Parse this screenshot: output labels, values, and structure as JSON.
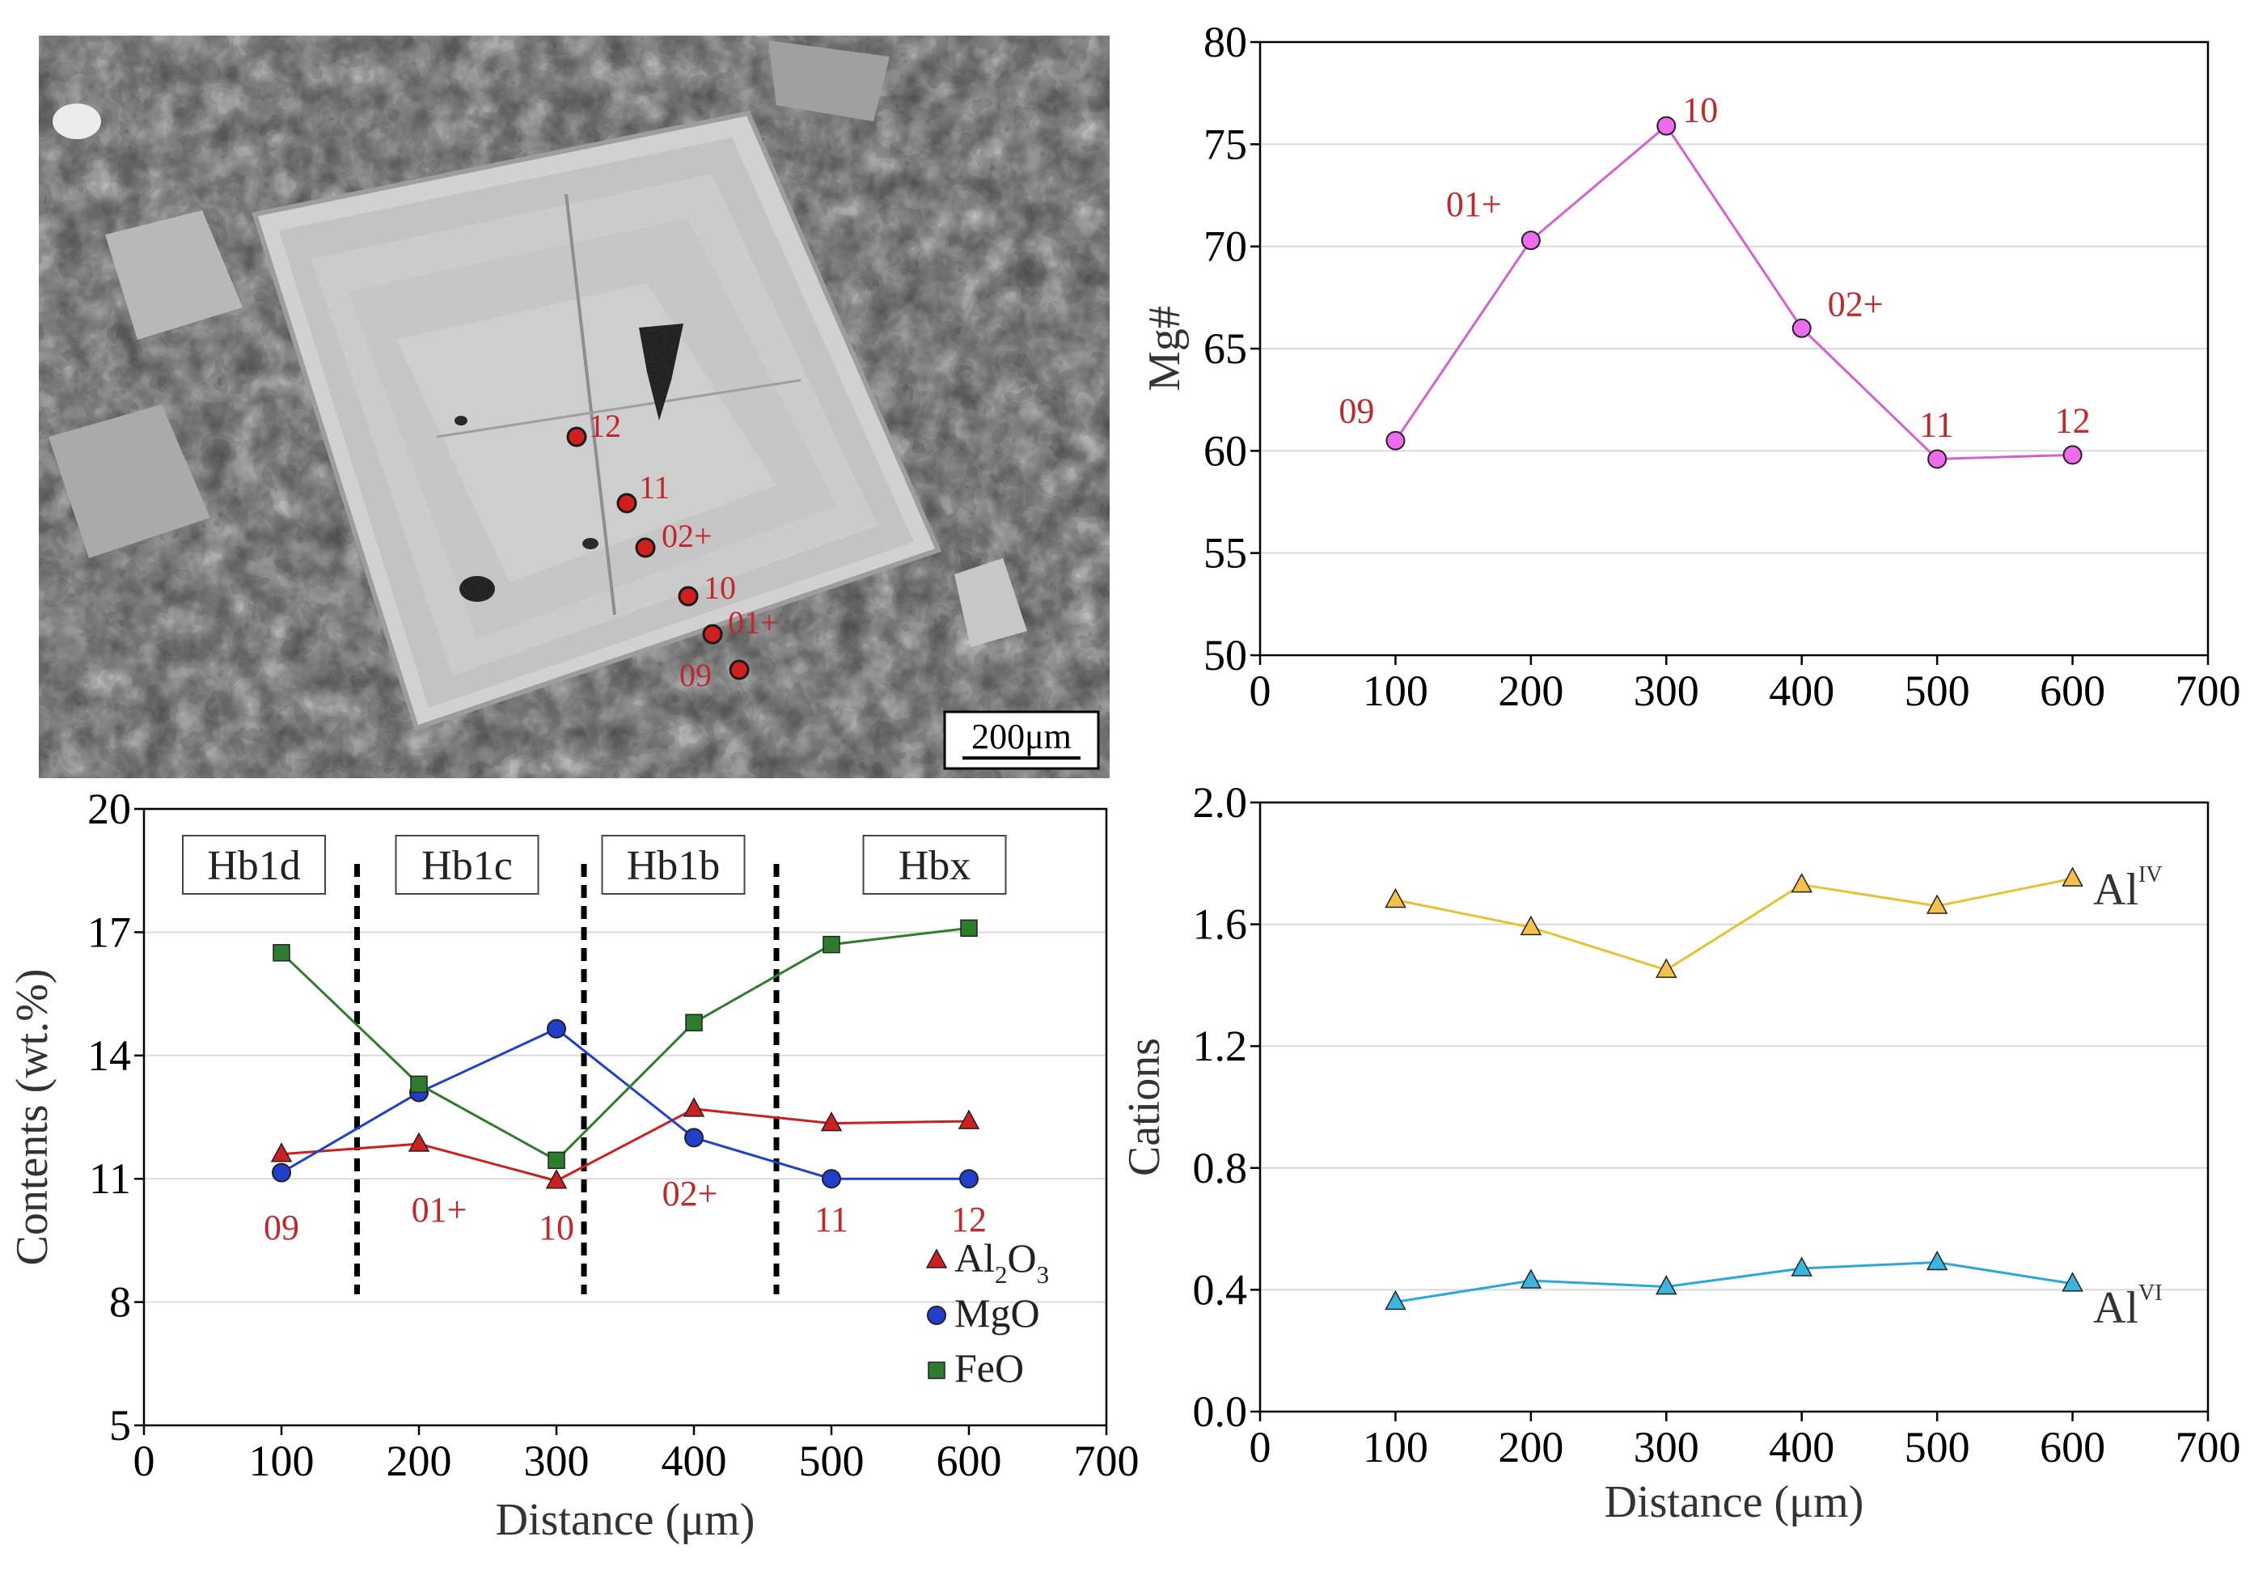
{
  "colors": {
    "mg_line": "#d65fd6",
    "mg_marker": "#ee6bee",
    "al2o3": "#cc1f1f",
    "mgo": "#1f3fcc",
    "feo": "#2e7d2e",
    "aliv_line": "#e6c233",
    "aliv_marker": "#f2c24a",
    "alvi_line": "#2aa8d8",
    "alvi_marker": "#3bb5e0",
    "label_red": "#c0282d",
    "grid": "#d9d9d9"
  },
  "micrograph": {
    "scale_bar": "200μm",
    "spot_labels": [
      "12",
      "11",
      "02+",
      "10",
      "01+",
      "09"
    ]
  },
  "chart_data": [
    {
      "id": "mg",
      "type": "line",
      "x": [
        100,
        200,
        300,
        400,
        500,
        600
      ],
      "series": [
        {
          "name": "Mg#",
          "values": [
            60.5,
            70.3,
            75.9,
            66.0,
            59.6,
            59.8
          ]
        }
      ],
      "point_labels": [
        "09",
        "01+",
        "10",
        "02+",
        "11",
        "12"
      ],
      "xlabel": "",
      "ylabel": "Mg#",
      "xlim": [
        0,
        700
      ],
      "ylim": [
        50,
        80
      ],
      "xticks": [
        "0",
        "100",
        "200",
        "300",
        "400",
        "500",
        "600",
        "700"
      ],
      "yticks": [
        "50",
        "55",
        "60",
        "65",
        "70",
        "75",
        "80"
      ],
      "grid": true
    },
    {
      "id": "contents",
      "type": "line",
      "x": [
        100,
        200,
        300,
        400,
        500,
        600
      ],
      "series": [
        {
          "name": "Al2O3",
          "values": [
            11.6,
            11.85,
            10.95,
            12.7,
            12.35,
            12.4
          ]
        },
        {
          "name": "MgO",
          "values": [
            11.15,
            13.1,
            14.65,
            12.0,
            11.0,
            11.0
          ]
        },
        {
          "name": "FeO",
          "values": [
            16.5,
            13.3,
            11.45,
            14.8,
            16.7,
            17.1
          ]
        }
      ],
      "legend": {
        "position": "bottom-right",
        "entries": [
          {
            "base": "Al",
            "sub": "2",
            "rest": "O",
            "sub2": "3"
          },
          {
            "base": "MgO"
          },
          {
            "base": "FeO"
          }
        ]
      },
      "point_labels": [
        "09",
        "01+",
        "10",
        "02+",
        "11",
        "12"
      ],
      "zones": [
        "Hb1d",
        "Hb1c",
        "Hb1b",
        "Hbx"
      ],
      "zone_boundaries": [
        155,
        320,
        460
      ],
      "xlabel": "Distance (μm)",
      "ylabel": "Contents (wt.%)",
      "xlim": [
        0,
        700
      ],
      "ylim": [
        5,
        20
      ],
      "xticks": [
        "0",
        "100",
        "200",
        "300",
        "400",
        "500",
        "600",
        "700"
      ],
      "yticks": [
        "5",
        "8",
        "11",
        "14",
        "17",
        "20"
      ],
      "grid": true
    },
    {
      "id": "cations",
      "type": "line",
      "x": [
        100,
        200,
        300,
        400,
        500,
        600
      ],
      "series": [
        {
          "name": "AlIV",
          "values": [
            1.68,
            1.59,
            1.45,
            1.73,
            1.66,
            1.75
          ]
        },
        {
          "name": "AlVI",
          "values": [
            0.36,
            0.43,
            0.41,
            0.47,
            0.49,
            0.42
          ]
        }
      ],
      "series_labels": [
        {
          "base": "Al",
          "sup": "IV"
        },
        {
          "base": "Al",
          "sup": "VI"
        }
      ],
      "xlabel": "Distance (μm)",
      "ylabel": "Cations",
      "xlim": [
        0,
        700
      ],
      "ylim": [
        0,
        2
      ],
      "xticks": [
        "0",
        "100",
        "200",
        "300",
        "400",
        "500",
        "600",
        "700"
      ],
      "yticks": [
        "0.0",
        "0.4",
        "0.8",
        "1.2",
        "1.6",
        "2.0"
      ],
      "grid": true
    }
  ]
}
